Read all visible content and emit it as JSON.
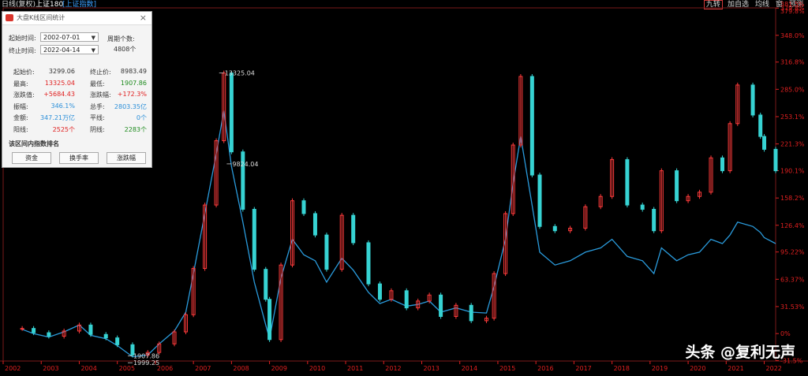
{
  "header": {
    "title": "日线(复权)",
    "index_name": "上证180",
    "sub_label": "[上证指数]",
    "tools": [
      {
        "label": "九转",
        "active": true
      },
      {
        "label": "加自选",
        "active": false
      },
      {
        "label": "均线",
        "active": false
      },
      {
        "label": "窗",
        "active": false
      },
      {
        "label": "预测",
        "active": false
      }
    ]
  },
  "dialog": {
    "title": "大盘K线区间统计",
    "start_label": "起始时间:",
    "start_value": "2002-07-01",
    "end_label": "终止时间:",
    "end_value": "2022-04-14",
    "period_label": "周期个数:",
    "period_value": "4808个",
    "stats": [
      {
        "label": "起始价:",
        "value": "3299.06",
        "tone": "dark",
        "label2": "终止价:",
        "value2": "8983.49",
        "tone2": "dark"
      },
      {
        "label": "最高:",
        "value": "13325.04",
        "tone": "red",
        "label2": "最低:",
        "value2": "1907.86",
        "tone2": "green"
      },
      {
        "label": "涨跌值:",
        "value": "+5684.43",
        "tone": "red",
        "label2": "涨跌幅:",
        "value2": "+172.3%",
        "tone2": "red"
      },
      {
        "label": "振幅:",
        "value": "346.1%",
        "tone": "blue",
        "label2": "总手:",
        "value2": "2803.35亿",
        "tone2": "blue"
      },
      {
        "label": "金额:",
        "value": "347.21万亿",
        "tone": "blue",
        "label2": "平线:",
        "value2": "0个",
        "tone2": "blue"
      },
      {
        "label": "阳线:",
        "value": "2525个",
        "tone": "red",
        "label2": "阴线:",
        "value2": "2283个",
        "tone2": "green"
      }
    ],
    "rank_label": "该区间内指数排名",
    "buttons": [
      "资金",
      "换手率",
      "涨跌幅"
    ]
  },
  "watermark": "头条 @复利无声",
  "colors": {
    "background": "#000000",
    "up": "#ff3b3b",
    "down": "#37d3d3",
    "compare_line": "#2a9bdc",
    "axis_red": "#e02020",
    "gridline": "#7a1a1a"
  },
  "chart_data": {
    "type": "line",
    "x_tick_labels": [
      "2002",
      "2003",
      "2004",
      "2005",
      "2006",
      "2007",
      "2008",
      "2009",
      "2010",
      "2011",
      "2012",
      "2013",
      "2014",
      "2015",
      "2016",
      "2017",
      "2018",
      "2019",
      "2020",
      "2021",
      "2022"
    ],
    "y_tick_labels": [
      "-31.5%",
      "0%",
      "31.53%",
      "63.37%",
      "95.22%",
      "126.4%",
      "158.2%",
      "190.1%",
      "221.3%",
      "253.1%",
      "285.0%",
      "316.8%",
      "348.0%",
      "379.8%"
    ],
    "y_axis_top_labels": [
      "381.5%",
      "379.8%"
    ],
    "ylim": [
      -32,
      380
    ],
    "annotations": [
      {
        "text": "13325.04",
        "x": 2007.8,
        "y": 304
      },
      {
        "text": "9824.04",
        "x": 2008.0,
        "y": 198
      },
      {
        "text": "1907.86",
        "x": 2005.4,
        "y": -26
      },
      {
        "text": "1999.25",
        "x": 2005.4,
        "y": -34
      }
    ],
    "series": [
      {
        "name": "上证180",
        "style": "candles",
        "x": [
          2002.5,
          2002.8,
          2003.2,
          2003.6,
          2004.0,
          2004.3,
          2004.7,
          2005.0,
          2005.4,
          2005.8,
          2006.1,
          2006.5,
          2006.8,
          2007.0,
          2007.3,
          2007.6,
          2007.8,
          2008.0,
          2008.3,
          2008.6,
          2008.9,
          2009.0,
          2009.3,
          2009.6,
          2009.9,
          2010.2,
          2010.5,
          2010.9,
          2011.2,
          2011.6,
          2011.9,
          2012.2,
          2012.6,
          2012.9,
          2013.2,
          2013.5,
          2013.9,
          2014.3,
          2014.7,
          2014.9,
          2015.2,
          2015.4,
          2015.6,
          2015.9,
          2016.1,
          2016.5,
          2016.9,
          2017.3,
          2017.7,
          2018.0,
          2018.4,
          2018.8,
          2019.1,
          2019.3,
          2019.7,
          2020.0,
          2020.3,
          2020.6,
          2020.9,
          2021.1,
          2021.3,
          2021.7,
          2021.9,
          2022.0,
          2022.3
        ],
        "values": [
          6,
          1,
          -3,
          3,
          10,
          -1,
          -5,
          -13,
          -25,
          -22,
          -12,
          2,
          22,
          76,
          150,
          225,
          304,
          212,
          145,
          75,
          40,
          -7,
          80,
          155,
          140,
          115,
          75,
          138,
          106,
          58,
          40,
          50,
          30,
          38,
          45,
          20,
          33,
          15,
          18,
          70,
          140,
          220,
          300,
          185,
          125,
          120,
          123,
          148,
          160,
          203,
          150,
          145,
          120,
          190,
          155,
          160,
          165,
          205,
          190,
          245,
          290,
          255,
          230,
          215,
          190
        ]
      },
      {
        "name": "上证指数",
        "style": "line",
        "x": [
          2002.5,
          2002.8,
          2003.2,
          2003.6,
          2004.0,
          2004.3,
          2004.7,
          2005.0,
          2005.4,
          2005.8,
          2006.1,
          2006.5,
          2006.8,
          2007.0,
          2007.3,
          2007.6,
          2007.8,
          2008.0,
          2008.3,
          2008.6,
          2008.9,
          2009.0,
          2009.3,
          2009.6,
          2009.9,
          2010.2,
          2010.5,
          2010.9,
          2011.2,
          2011.6,
          2011.9,
          2012.2,
          2012.6,
          2012.9,
          2013.2,
          2013.5,
          2013.9,
          2014.3,
          2014.7,
          2014.9,
          2015.2,
          2015.4,
          2015.6,
          2015.9,
          2016.1,
          2016.5,
          2016.9,
          2017.3,
          2017.7,
          2018.0,
          2018.4,
          2018.8,
          2019.1,
          2019.3,
          2019.7,
          2020.0,
          2020.3,
          2020.6,
          2020.9,
          2021.1,
          2021.3,
          2021.7,
          2021.9,
          2022.0,
          2022.3
        ],
        "values": [
          5,
          0,
          -4,
          2,
          10,
          -2,
          -6,
          -14,
          -27,
          -25,
          -12,
          3,
          25,
          70,
          140,
          210,
          260,
          195,
          130,
          60,
          10,
          -6,
          65,
          110,
          92,
          85,
          60,
          88,
          74,
          48,
          35,
          40,
          32,
          34,
          38,
          25,
          30,
          25,
          24,
          55,
          110,
          175,
          230,
          150,
          95,
          80,
          85,
          95,
          100,
          110,
          90,
          85,
          70,
          100,
          85,
          92,
          95,
          110,
          105,
          115,
          130,
          125,
          118,
          112,
          105
        ]
      }
    ]
  }
}
